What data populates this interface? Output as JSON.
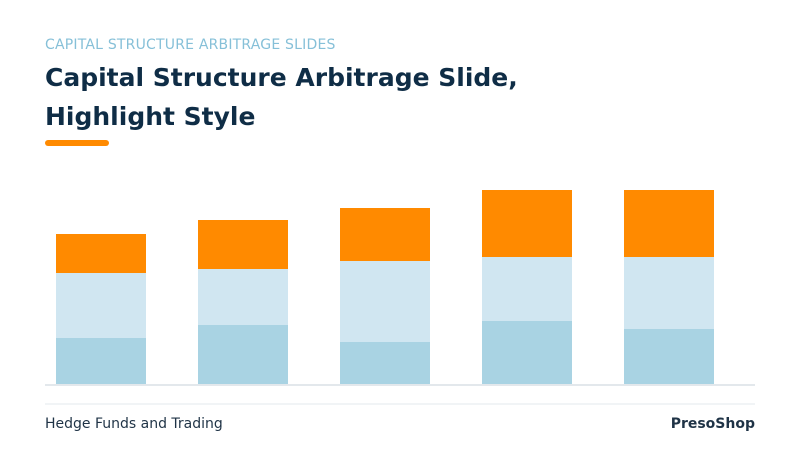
{
  "header": {
    "kicker": "CAPITAL STRUCTURE ARBITRAGE SLIDES",
    "title": "Capital Structure Arbitrage Slide, Highlight Style"
  },
  "chart_data": {
    "type": "bar",
    "stacked": true,
    "categories": [
      null,
      null,
      null,
      null,
      null
    ],
    "series": [
      {
        "color": "#a9d3e3",
        "values": [
          47,
          60,
          43,
          64,
          56
        ]
      },
      {
        "color": "#d0e6f1",
        "values": [
          65,
          56,
          81,
          64,
          72
        ]
      },
      {
        "color": "#ff8a00",
        "values": [
          39,
          49,
          53,
          67,
          67
        ]
      }
    ],
    "ylim": [
      0,
      200
    ]
  },
  "footer": {
    "left": "Hedge Funds and Trading",
    "right": "PresoShop"
  }
}
